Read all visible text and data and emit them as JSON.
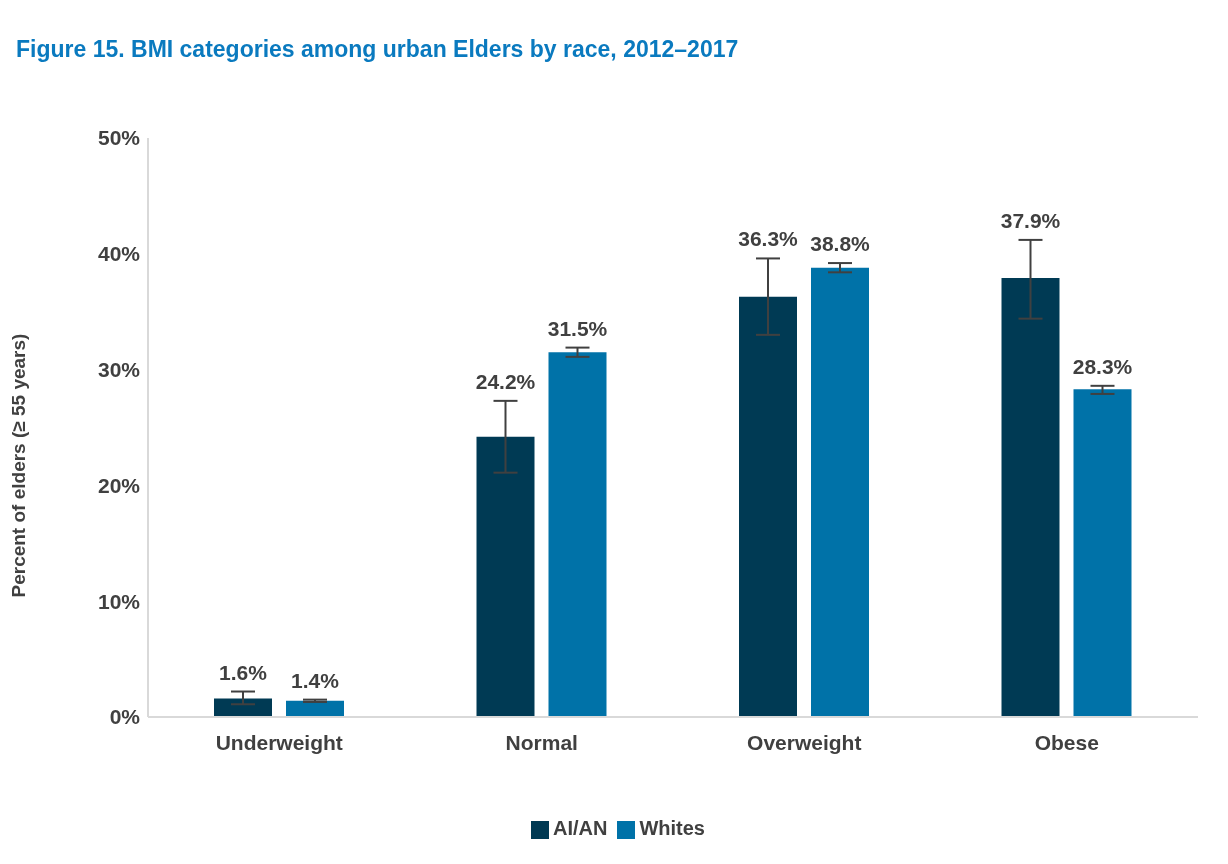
{
  "chart_data": {
    "type": "bar",
    "title": "Figure 15. BMI categories among urban Elders by race, 2012–2017",
    "ylabel": "Percent of elders (≥ 55 years)",
    "categories": [
      "Underweight",
      "Normal",
      "Overweight",
      "Obese"
    ],
    "series": [
      {
        "name": "AI/AN",
        "color": "#003a54",
        "values": [
          1.6,
          24.2,
          36.3,
          37.9
        ],
        "errors": [
          [
            1.1,
            2.2
          ],
          [
            21.1,
            27.3
          ],
          [
            33.0,
            39.6
          ],
          [
            34.4,
            41.2
          ]
        ],
        "value_labels": [
          "1.6%",
          "24.2%",
          "36.3%",
          "37.9%"
        ]
      },
      {
        "name": "Whites",
        "color": "#0072a8",
        "values": [
          1.4,
          31.5,
          38.8,
          28.3
        ],
        "errors": [
          [
            1.3,
            1.5
          ],
          [
            31.1,
            31.9
          ],
          [
            38.4,
            39.2
          ],
          [
            27.9,
            28.6
          ]
        ],
        "value_labels": [
          "1.4%",
          "31.5%",
          "38.8%",
          "28.3%"
        ]
      }
    ],
    "ylim": [
      0,
      50
    ],
    "yticks": [
      {
        "value": 0,
        "label": "0%"
      },
      {
        "value": 10,
        "label": "10%"
      },
      {
        "value": 20,
        "label": "20%"
      },
      {
        "value": 30,
        "label": "30%"
      },
      {
        "value": 40,
        "label": "40%"
      },
      {
        "value": 50,
        "label": "50%"
      }
    ],
    "grid": false,
    "legend": "bottom"
  }
}
